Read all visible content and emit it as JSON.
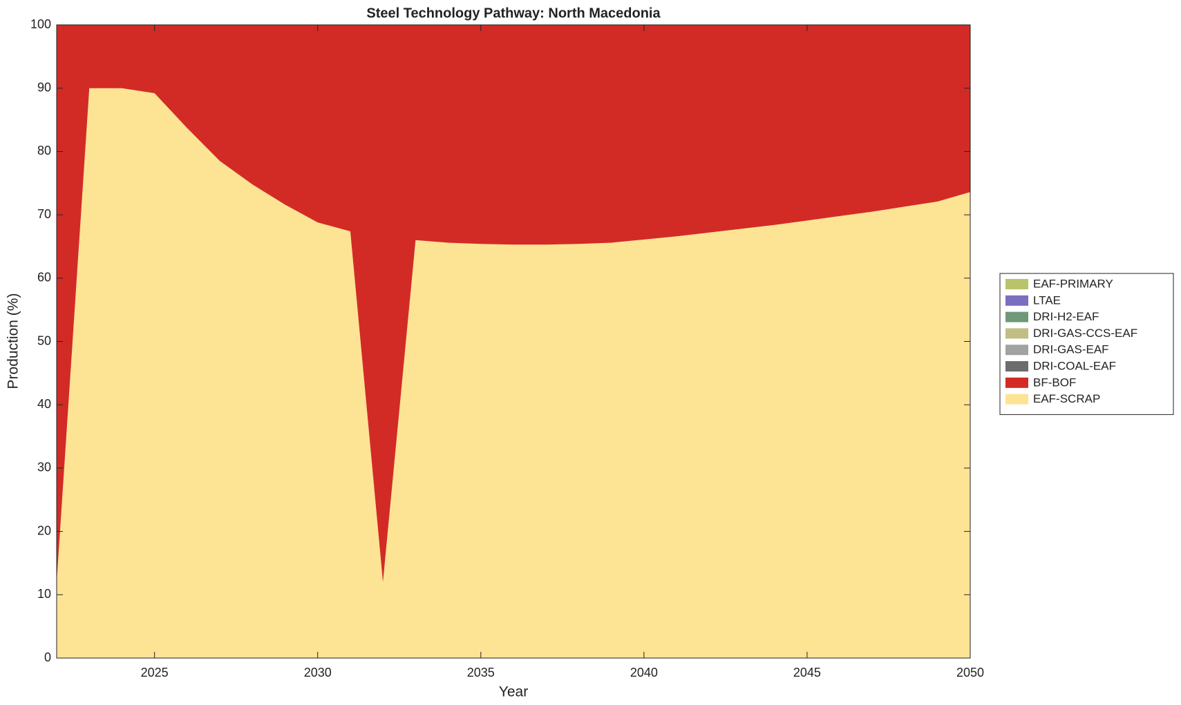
{
  "chart_data": {
    "type": "stacked_area",
    "title": "Steel Technology Pathway: North Macedonia",
    "xlabel": "Year",
    "ylabel": "Production (%)",
    "x": [
      2022,
      2023,
      2024,
      2025,
      2026,
      2027,
      2028,
      2029,
      2030,
      2031,
      2032,
      2033,
      2034,
      2035,
      2036,
      2037,
      2038,
      2039,
      2040,
      2041,
      2042,
      2043,
      2044,
      2045,
      2046,
      2047,
      2048,
      2049,
      2050
    ],
    "xlim": [
      2022,
      2050
    ],
    "xticks": [
      2025,
      2030,
      2035,
      2040,
      2045,
      2050
    ],
    "ylim": [
      0,
      100
    ],
    "yticks": [
      0,
      10,
      20,
      30,
      40,
      50,
      60,
      70,
      80,
      90,
      100
    ],
    "grid": false,
    "legend": "right",
    "series": [
      {
        "name": "EAF-SCRAP",
        "color": "#fde394",
        "values": [
          12,
          90,
          90,
          89.2,
          83.7,
          78.5,
          74.8,
          71.6,
          68.8,
          67.4,
          12,
          66,
          65.6,
          65.4,
          65.3,
          65.3,
          65.4,
          65.6,
          66.1,
          66.6,
          67.2,
          67.8,
          68.4,
          69.1,
          69.8,
          70.5,
          71.3,
          72.1,
          73.6
        ]
      },
      {
        "name": "BF-BOF",
        "color": "#d22b25",
        "values": [
          88,
          10,
          10,
          10.8,
          16.3,
          21.5,
          25.2,
          28.4,
          31.2,
          32.6,
          88,
          34,
          34.4,
          34.6,
          34.7,
          34.7,
          34.6,
          34.4,
          33.9,
          33.4,
          32.8,
          32.2,
          31.6,
          30.9,
          30.2,
          29.5,
          28.7,
          27.9,
          26.4
        ]
      },
      {
        "name": "DRI-COAL-EAF",
        "color": "#6c6c6c",
        "values": [
          0,
          0,
          0,
          0,
          0,
          0,
          0,
          0,
          0,
          0,
          0,
          0,
          0,
          0,
          0,
          0,
          0,
          0,
          0,
          0,
          0,
          0,
          0,
          0,
          0,
          0,
          0,
          0,
          0
        ]
      },
      {
        "name": "DRI-GAS-EAF",
        "color": "#a2a2a2",
        "values": [
          0,
          0,
          0,
          0,
          0,
          0,
          0,
          0,
          0,
          0,
          0,
          0,
          0,
          0,
          0,
          0,
          0,
          0,
          0,
          0,
          0,
          0,
          0,
          0,
          0,
          0,
          0,
          0,
          0
        ]
      },
      {
        "name": "DRI-GAS-CCS-EAF",
        "color": "#c2bd84",
        "values": [
          0,
          0,
          0,
          0,
          0,
          0,
          0,
          0,
          0,
          0,
          0,
          0,
          0,
          0,
          0,
          0,
          0,
          0,
          0,
          0,
          0,
          0,
          0,
          0,
          0,
          0,
          0,
          0,
          0
        ]
      },
      {
        "name": "DRI-H2-EAF",
        "color": "#6f9878",
        "values": [
          0,
          0,
          0,
          0,
          0,
          0,
          0,
          0,
          0,
          0,
          0,
          0,
          0,
          0,
          0,
          0,
          0,
          0,
          0,
          0,
          0,
          0,
          0,
          0,
          0,
          0,
          0,
          0,
          0
        ]
      },
      {
        "name": "LTAE",
        "color": "#7b6fc0",
        "values": [
          0,
          0,
          0,
          0,
          0,
          0,
          0,
          0,
          0,
          0,
          0,
          0,
          0,
          0,
          0,
          0,
          0,
          0,
          0,
          0,
          0,
          0,
          0,
          0,
          0,
          0,
          0,
          0,
          0
        ]
      },
      {
        "name": "EAF-PRIMARY",
        "color": "#b9c46a",
        "values": [
          0,
          0,
          0,
          0,
          0,
          0,
          0,
          0,
          0,
          0,
          0,
          0,
          0,
          0,
          0,
          0,
          0,
          0,
          0,
          0,
          0,
          0,
          0,
          0,
          0,
          0,
          0,
          0,
          0
        ]
      }
    ]
  }
}
